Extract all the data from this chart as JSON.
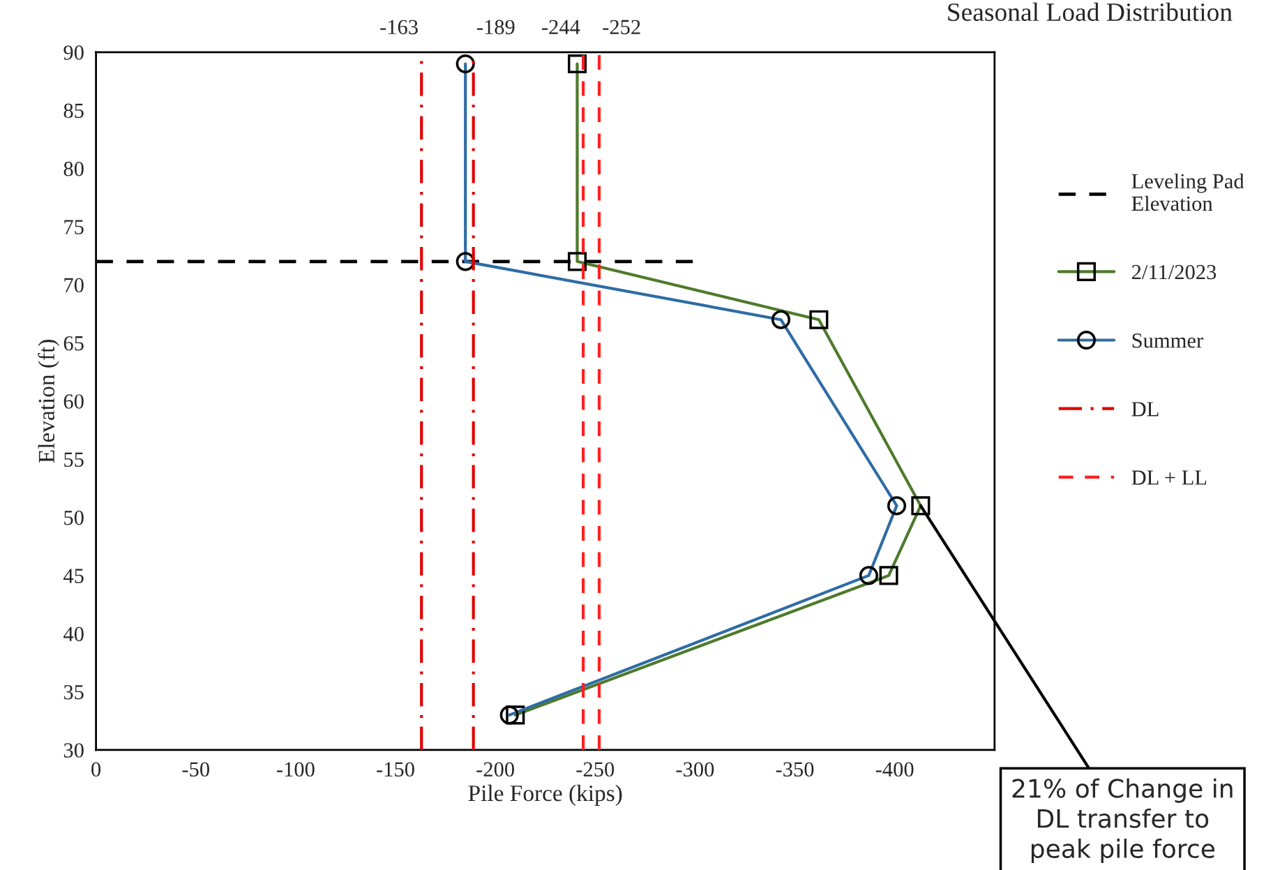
{
  "chart_data": {
    "type": "line",
    "title": "Seasonal Load Distribution",
    "xlabel": "Pile Force (kips)",
    "ylabel": "Elevation (ft)",
    "series": [
      {
        "name": "Leveling Pad Elevation",
        "color": "#000000",
        "x": [
          0,
          -300
        ],
        "values": [
          72,
          72
        ],
        "line_style": "dashed",
        "marker": "none"
      },
      {
        "name": "2/11/2023",
        "color": "#4e7a2c",
        "x": [
          -241,
          -241,
          -362,
          -413,
          -397,
          -210
        ],
        "values": [
          89,
          72,
          67,
          51,
          45,
          33
        ],
        "line_style": "solid",
        "marker": "square"
      },
      {
        "name": "Summer",
        "color": "#2e6ca4",
        "x": [
          -185,
          -185,
          -343,
          -401,
          -387,
          -207
        ],
        "values": [
          89,
          72,
          67,
          51,
          45,
          33
        ],
        "line_style": "solid",
        "marker": "circle"
      },
      {
        "name": "DL",
        "color": "#e00000",
        "x": [
          -163,
          -163,
          null,
          -189,
          -189
        ],
        "values": [
          30,
          90,
          null,
          30,
          90
        ],
        "line_style": "dashdot",
        "marker": "none"
      },
      {
        "name": "DL + LL",
        "color": "#ff2020",
        "x": [
          -244,
          -244,
          null,
          -252,
          -252
        ],
        "values": [
          30,
          90,
          null,
          30,
          90
        ],
        "line_style": "dashed",
        "marker": "none"
      }
    ],
    "xlim": [
      0,
      -450
    ],
    "xticks": [
      0,
      -50,
      -100,
      -150,
      -200,
      -250,
      -300,
      -350,
      -400
    ],
    "ylim": [
      30,
      90
    ],
    "yticks": [
      30,
      35,
      40,
      45,
      50,
      55,
      60,
      65,
      70,
      75,
      80,
      85,
      90
    ],
    "grid": false,
    "legend": "right",
    "annotations": [
      {
        "text": "-163",
        "x": -163,
        "y": 90
      },
      {
        "text": "-189",
        "x": -189,
        "y": 90
      },
      {
        "text": "-244",
        "x": -244,
        "y": 90
      },
      {
        "text": "-252",
        "x": -252,
        "y": 90
      },
      {
        "text": "21% of Change in DL transfer to peak pile force",
        "x": -413,
        "y": 51
      }
    ]
  }
}
